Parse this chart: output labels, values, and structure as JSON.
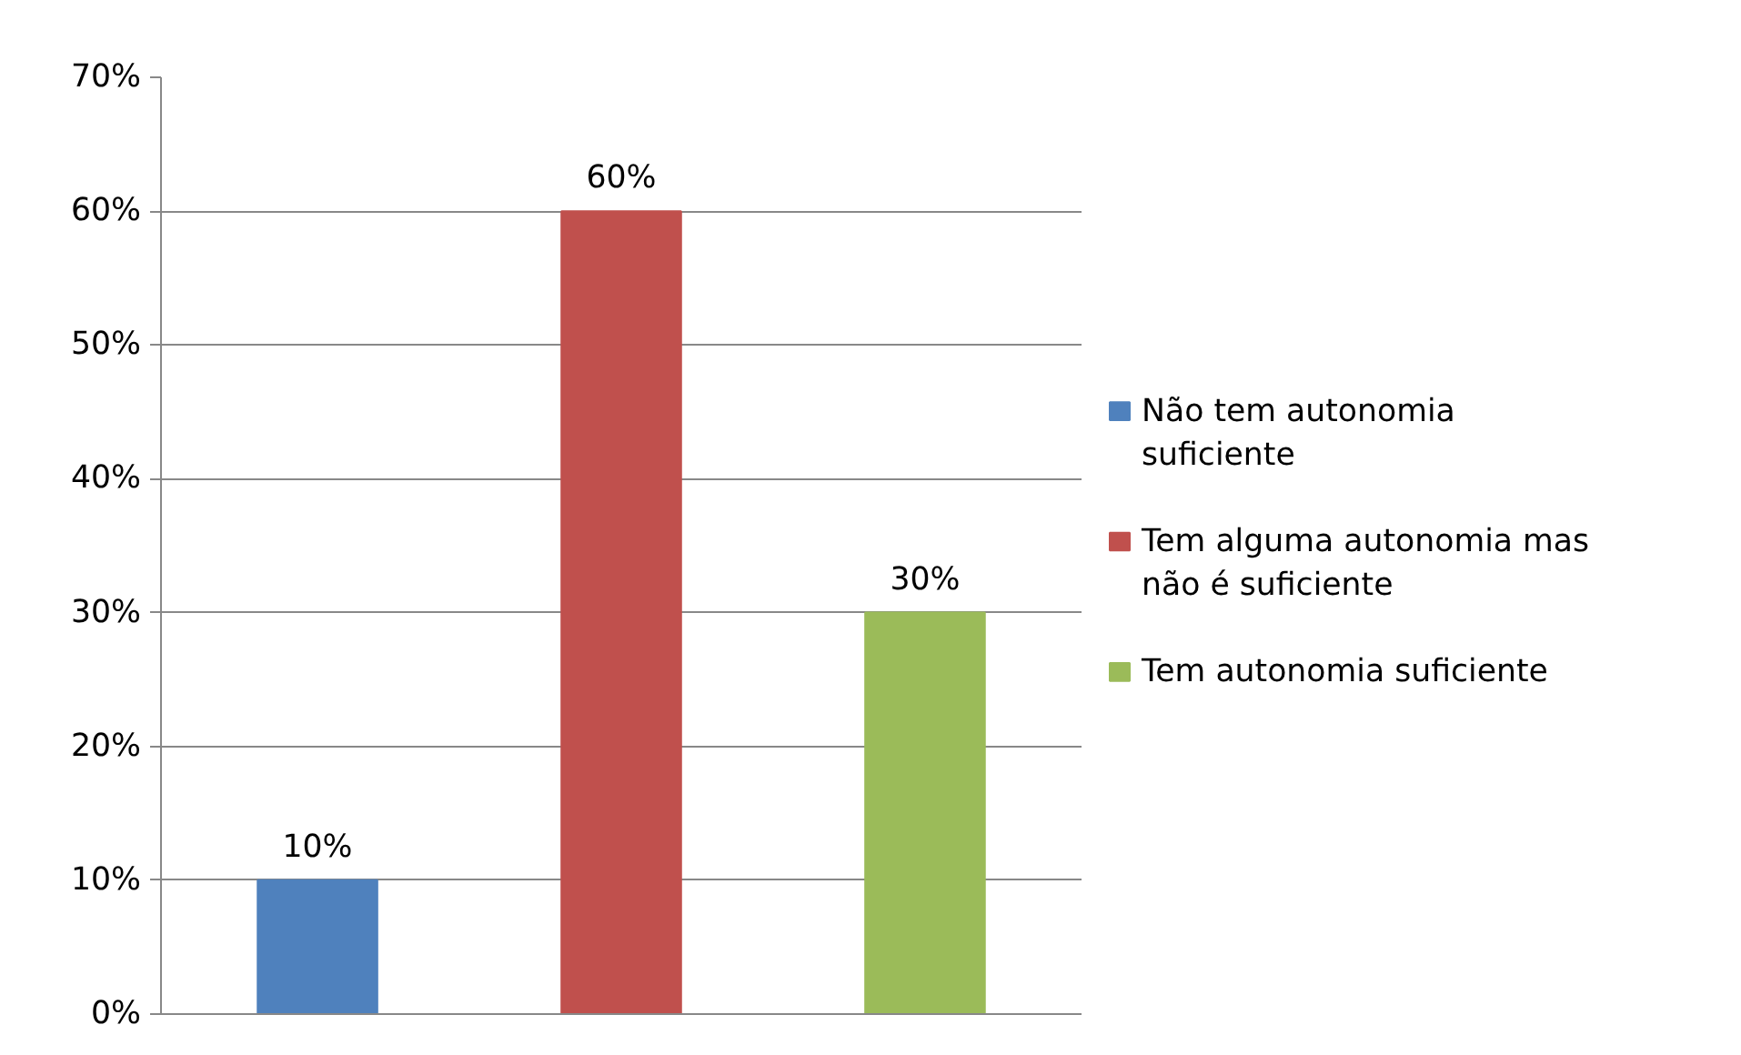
{
  "chart_data": {
    "type": "bar",
    "categories": [
      null
    ],
    "series": [
      {
        "name": "Não tem autonomia suficiente",
        "color": "#4f81bd",
        "values": [
          10
        ],
        "value_labels": [
          "10%"
        ]
      },
      {
        "name": "Tem alguma autonomia mas não é suficiente",
        "color": "#c0504d",
        "values": [
          60
        ],
        "value_labels": [
          "60%"
        ]
      },
      {
        "name": "Tem autonomia suficiente",
        "color": "#9bbb59",
        "values": [
          30
        ],
        "value_labels": [
          "30%"
        ]
      }
    ],
    "ylim": [
      0,
      70
    ],
    "yticks": [
      {
        "value": 0,
        "label": "0%"
      },
      {
        "value": 10,
        "label": "10%"
      },
      {
        "value": 20,
        "label": "20%"
      },
      {
        "value": 30,
        "label": "30%"
      },
      {
        "value": 40,
        "label": "40%"
      },
      {
        "value": 50,
        "label": "50%"
      },
      {
        "value": 60,
        "label": "60%"
      },
      {
        "value": 70,
        "label": "70%"
      }
    ],
    "grid": "y",
    "legend": "right",
    "tick_labels": "y"
  }
}
